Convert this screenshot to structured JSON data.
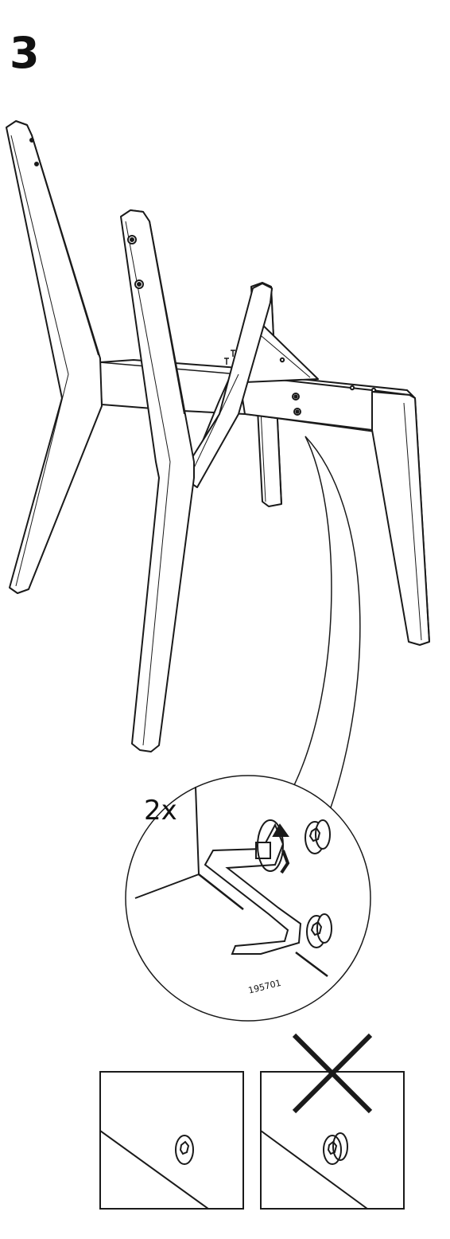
{
  "step": {
    "number": "3"
  },
  "detail": {
    "quantity": "2x",
    "part_number": "195701"
  },
  "panels": [
    {
      "state": "correct",
      "mark": ""
    },
    {
      "state": "incorrect",
      "mark": "cross"
    }
  ]
}
